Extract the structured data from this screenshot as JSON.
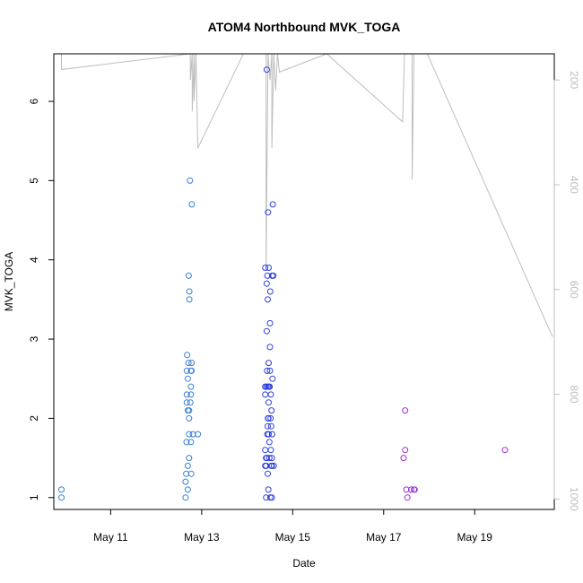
{
  "chart_data": {
    "type": "scatter",
    "title": "ATOM4 Northbound MVK_TOGA",
    "xlabel": "Date",
    "ylabel": "MVK_TOGA",
    "xlim": [
      "2018-05-09T18:00",
      "2018-05-20T18:00"
    ],
    "ylim": [
      0.85,
      6.6
    ],
    "x_ticks": [
      {
        "date": "2018-05-11T00:00",
        "label": "May 11"
      },
      {
        "date": "2018-05-13T00:00",
        "label": "May 13"
      },
      {
        "date": "2018-05-15T00:00",
        "label": "May 15"
      },
      {
        "date": "2018-05-17T00:00",
        "label": "May 17"
      },
      {
        "date": "2018-05-19T00:00",
        "label": "May 19"
      }
    ],
    "y_ticks": [
      1,
      2,
      3,
      4,
      5,
      6
    ],
    "secondary_axis": {
      "position": "right",
      "reversed": true,
      "range": [
        150,
        1020
      ],
      "ticks": [
        200,
        400,
        600,
        800,
        1000
      ],
      "color": "#bebebe"
    },
    "grid": false,
    "legend": "none",
    "colors": {
      "early": "#3b7fd6",
      "mid": "#2c3fe0",
      "late": "#9a2fd6",
      "background_line": "#bebebe",
      "axis": "#000000"
    },
    "background_line": [
      [
        "2018-05-09T22:00",
        150
      ],
      [
        "2018-05-09T22:00",
        180
      ],
      [
        "2018-05-12T18:00",
        150
      ],
      [
        "2018-05-12T18:00",
        200
      ],
      [
        "2018-05-12T19:00",
        150
      ],
      [
        "2018-05-12T19:00",
        260
      ],
      [
        "2018-05-12T20:00",
        150
      ],
      [
        "2018-05-12T20:00",
        240
      ],
      [
        "2018-05-12T21:00",
        150
      ],
      [
        "2018-05-12T22:00",
        330
      ],
      [
        "2018-05-13T22:00",
        150
      ],
      [
        "2018-05-14T10:00",
        150
      ],
      [
        "2018-05-14T10:00",
        560
      ],
      [
        "2018-05-14T11:00",
        150
      ],
      [
        "2018-05-14T12:00",
        200
      ],
      [
        "2018-05-14T13:00",
        150
      ],
      [
        "2018-05-14T13:00",
        330
      ],
      [
        "2018-05-14T14:00",
        150
      ],
      [
        "2018-05-14T15:00",
        220
      ],
      [
        "2018-05-14T16:00",
        150
      ],
      [
        "2018-05-14T17:00",
        185
      ],
      [
        "2018-05-15T18:00",
        150
      ],
      [
        "2018-05-17T10:00",
        280
      ],
      [
        "2018-05-17T11:00",
        150
      ],
      [
        "2018-05-17T15:00",
        150
      ],
      [
        "2018-05-17T15:00",
        390
      ],
      [
        "2018-05-17T16:00",
        150
      ],
      [
        "2018-05-17T23:00",
        150
      ],
      [
        "2018-05-20T17:00",
        690
      ]
    ],
    "series": [
      {
        "color": "#3b7fd6",
        "points": [
          [
            "2018-05-09T22:00",
            1.1
          ],
          [
            "2018-05-09T22:00",
            1.0
          ]
        ]
      },
      {
        "color": "#3b7fd6",
        "points": [
          [
            "2018-05-12T15:30",
            1.0
          ],
          [
            "2018-05-12T15:30",
            1.2
          ],
          [
            "2018-05-12T15:50",
            1.3
          ],
          [
            "2018-05-12T16:00",
            1.7
          ],
          [
            "2018-05-12T16:10",
            2.2
          ],
          [
            "2018-05-12T16:10",
            2.3
          ],
          [
            "2018-05-12T16:10",
            2.6
          ],
          [
            "2018-05-12T16:20",
            2.8
          ],
          [
            "2018-05-12T16:40",
            1.1
          ],
          [
            "2018-05-12T16:40",
            1.4
          ],
          [
            "2018-05-12T16:40",
            2.1
          ],
          [
            "2018-05-12T16:40",
            2.5
          ],
          [
            "2018-05-12T17:00",
            2.7
          ],
          [
            "2018-05-12T17:10",
            3.8
          ],
          [
            "2018-05-12T17:20",
            1.5
          ],
          [
            "2018-05-12T17:20",
            1.8
          ],
          [
            "2018-05-12T17:20",
            2.0
          ],
          [
            "2018-05-12T17:20",
            2.1
          ],
          [
            "2018-05-12T17:30",
            3.5
          ],
          [
            "2018-05-12T17:30",
            3.6
          ],
          [
            "2018-05-12T17:50",
            5.0
          ],
          [
            "2018-05-12T18:00",
            2.2
          ],
          [
            "2018-05-12T18:20",
            1.7
          ],
          [
            "2018-05-12T18:20",
            2.3
          ],
          [
            "2018-05-12T18:20",
            2.4
          ],
          [
            "2018-05-12T18:20",
            2.6
          ],
          [
            "2018-05-12T18:30",
            1.3
          ],
          [
            "2018-05-12T18:40",
            2.6
          ],
          [
            "2018-05-12T18:40",
            2.7
          ],
          [
            "2018-05-12T18:50",
            4.7
          ],
          [
            "2018-05-12T19:20",
            1.8
          ],
          [
            "2018-05-12T22:00",
            1.8
          ]
        ]
      },
      {
        "color": "#2c3fe0",
        "points": [
          [
            "2018-05-14T09:30",
            1.4
          ],
          [
            "2018-05-14T09:30",
            1.6
          ],
          [
            "2018-05-14T09:30",
            2.3
          ],
          [
            "2018-05-14T09:30",
            2.4
          ],
          [
            "2018-05-14T09:30",
            3.9
          ],
          [
            "2018-05-14T10:00",
            1.0
          ],
          [
            "2018-05-14T10:00",
            1.4
          ],
          [
            "2018-05-14T10:00",
            1.5
          ],
          [
            "2018-05-14T10:10",
            2.4
          ],
          [
            "2018-05-14T10:20",
            1.5
          ],
          [
            "2018-05-14T10:20",
            3.1
          ],
          [
            "2018-05-14T10:20",
            3.7
          ],
          [
            "2018-05-14T10:20",
            6.4
          ],
          [
            "2018-05-14T10:30",
            2.6
          ],
          [
            "2018-05-14T10:40",
            1.8
          ],
          [
            "2018-05-14T10:40",
            3.8
          ],
          [
            "2018-05-14T10:50",
            1.3
          ],
          [
            "2018-05-14T10:50",
            1.9
          ],
          [
            "2018-05-14T10:50",
            3.5
          ],
          [
            "2018-05-14T11:00",
            2.0
          ],
          [
            "2018-05-14T11:00",
            2.4
          ],
          [
            "2018-05-14T11:00",
            4.6
          ],
          [
            "2018-05-14T11:10",
            1.1
          ],
          [
            "2018-05-14T11:10",
            2.0
          ],
          [
            "2018-05-14T11:20",
            1.8
          ],
          [
            "2018-05-14T11:20",
            2.2
          ],
          [
            "2018-05-14T11:20",
            2.7
          ],
          [
            "2018-05-14T11:20",
            3.9
          ],
          [
            "2018-05-14T11:30",
            2.4
          ],
          [
            "2018-05-14T11:40",
            1.5
          ],
          [
            "2018-05-14T11:40",
            1.7
          ],
          [
            "2018-05-14T11:50",
            2.4
          ],
          [
            "2018-05-14T12:00",
            2.6
          ],
          [
            "2018-05-14T12:00",
            2.9
          ],
          [
            "2018-05-14T12:00",
            3.2
          ],
          [
            "2018-05-14T12:10",
            1.0
          ],
          [
            "2018-05-14T12:10",
            3.6
          ],
          [
            "2018-05-14T12:20",
            2.0
          ],
          [
            "2018-05-14T12:30",
            1.6
          ],
          [
            "2018-05-14T12:30",
            2.3
          ],
          [
            "2018-05-14T12:40",
            1.4
          ],
          [
            "2018-05-14T12:40",
            1.9
          ],
          [
            "2018-05-14T12:50",
            2.1
          ],
          [
            "2018-05-14T13:00",
            1.0
          ],
          [
            "2018-05-14T13:00",
            1.4
          ],
          [
            "2018-05-14T13:00",
            1.5
          ],
          [
            "2018-05-14T13:10",
            1.8
          ],
          [
            "2018-05-14T13:10",
            3.8
          ],
          [
            "2018-05-14T13:20",
            2.5
          ],
          [
            "2018-05-14T13:30",
            4.7
          ],
          [
            "2018-05-14T13:50",
            3.8
          ],
          [
            "2018-05-14T14:00",
            1.4
          ]
        ]
      },
      {
        "color": "#9a2fd6",
        "points": [
          [
            "2018-05-17T10:30",
            1.5
          ],
          [
            "2018-05-17T11:20",
            2.1
          ],
          [
            "2018-05-17T11:20",
            1.6
          ],
          [
            "2018-05-17T12:00",
            1.1
          ],
          [
            "2018-05-17T12:30",
            1.0
          ],
          [
            "2018-05-17T14:30",
            1.1
          ],
          [
            "2018-05-17T16:00",
            1.1
          ],
          [
            "2018-05-17T16:20",
            1.1
          ],
          [
            "2018-05-19T16:00",
            1.6
          ]
        ]
      }
    ]
  }
}
